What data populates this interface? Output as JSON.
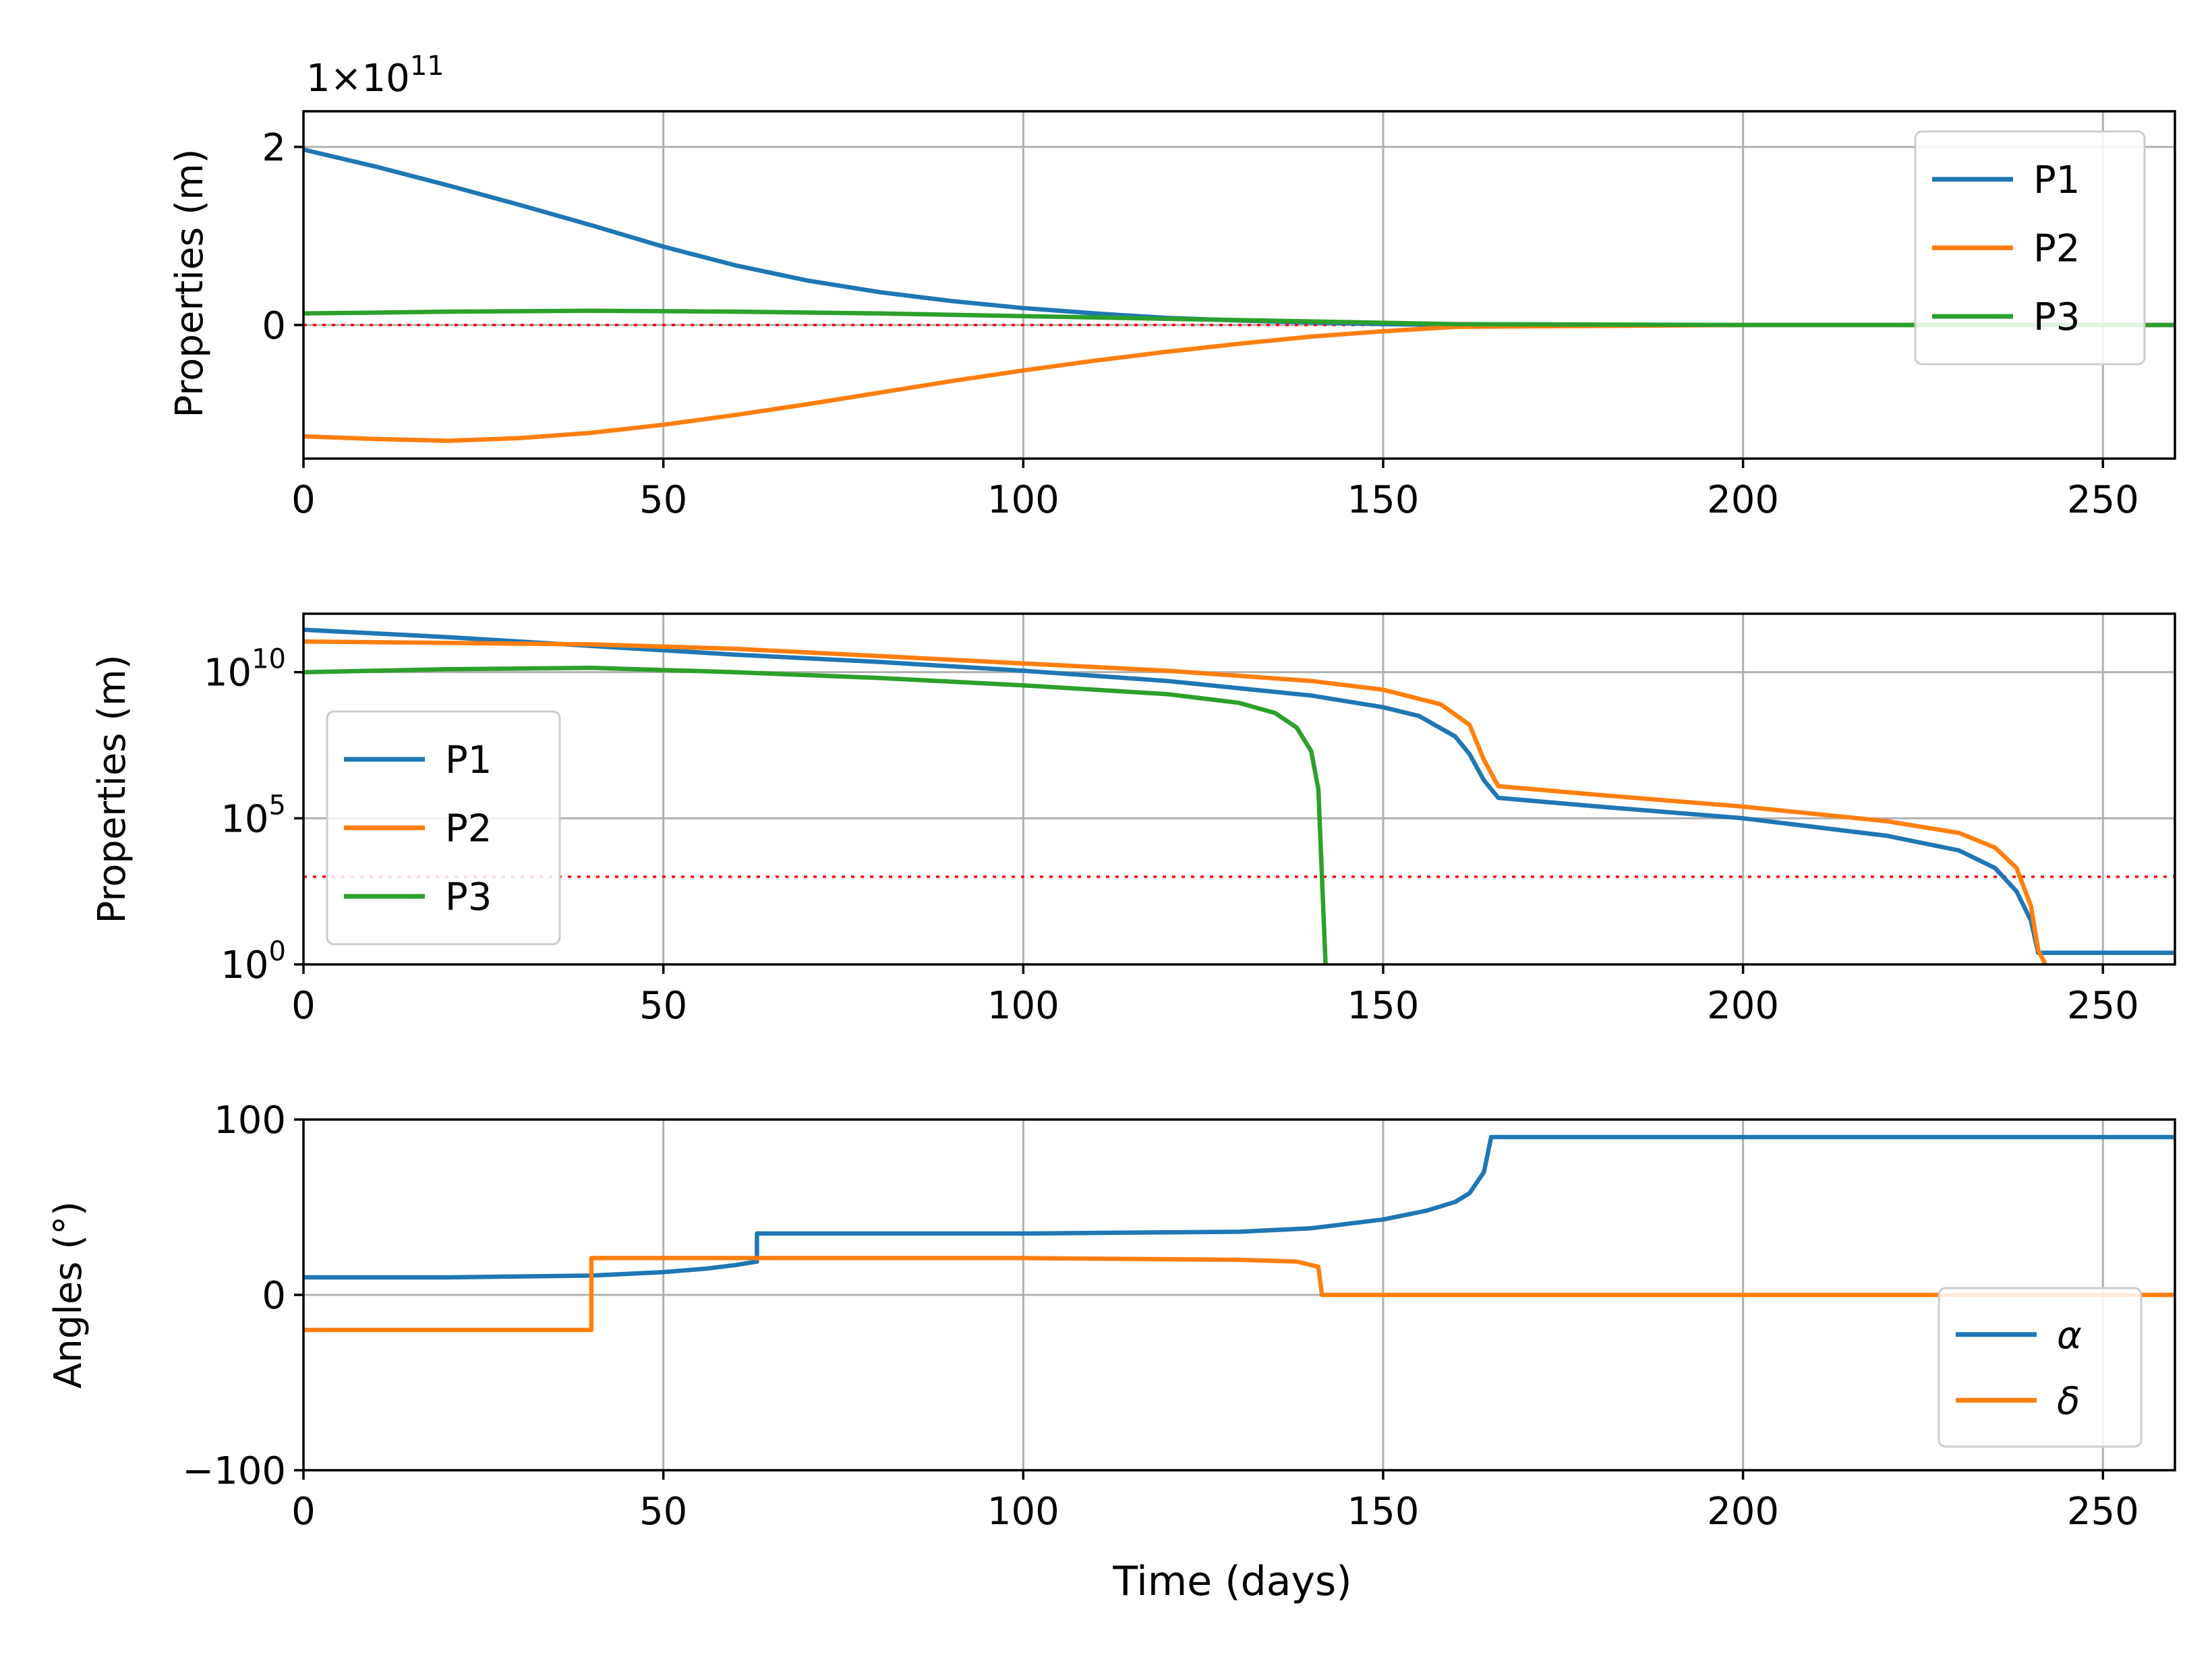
{
  "colors": {
    "blue": "#1f77b4",
    "orange": "#ff7f0e",
    "green": "#2ca02c",
    "ref": "#ff0000"
  },
  "chart_data": [
    {
      "type": "line",
      "title": "",
      "xlabel": "",
      "ylabel": "Properties (m)",
      "offset_label": "1×10^11",
      "offset_base": "1×10",
      "offset_exp": "11",
      "xlim": [
        0,
        260
      ],
      "ylim": [
        -1.5,
        2.4
      ],
      "xticks": [
        0,
        50,
        100,
        150,
        200,
        250
      ],
      "xtick_labels": [
        "0",
        "50",
        "100",
        "150",
        "200",
        "250"
      ],
      "yticks": [
        0,
        2
      ],
      "ytick_labels": [
        "0",
        "2"
      ],
      "grid": true,
      "legend": "top-right",
      "reference_line": 0,
      "series": [
        {
          "name": "P1",
          "color": "#1f77b4",
          "x": [
            0,
            10,
            20,
            30,
            40,
            50,
            60,
            70,
            80,
            90,
            100,
            110,
            120,
            130,
            140,
            150,
            160,
            200,
            260
          ],
          "y": [
            1.97,
            1.78,
            1.57,
            1.35,
            1.12,
            0.88,
            0.67,
            0.5,
            0.37,
            0.27,
            0.19,
            0.13,
            0.08,
            0.05,
            0.03,
            0.01,
            0.0,
            0.0,
            0.0
          ]
        },
        {
          "name": "P2",
          "color": "#ff7f0e",
          "x": [
            0,
            10,
            20,
            30,
            40,
            50,
            60,
            70,
            80,
            90,
            100,
            110,
            120,
            130,
            140,
            150,
            160,
            200,
            260
          ],
          "y": [
            -1.25,
            -1.28,
            -1.3,
            -1.27,
            -1.21,
            -1.12,
            -1.01,
            -0.89,
            -0.76,
            -0.63,
            -0.51,
            -0.4,
            -0.3,
            -0.21,
            -0.13,
            -0.07,
            -0.02,
            0.0,
            0.0
          ]
        },
        {
          "name": "P3",
          "color": "#2ca02c",
          "x": [
            0,
            20,
            40,
            60,
            80,
            100,
            120,
            140,
            160,
            200,
            260
          ],
          "y": [
            0.13,
            0.15,
            0.16,
            0.15,
            0.13,
            0.1,
            0.07,
            0.04,
            0.01,
            0.0,
            0.0
          ]
        }
      ]
    },
    {
      "type": "line",
      "title": "",
      "xlabel": "",
      "ylabel": "Properties (m)",
      "yscale": "log",
      "xlim": [
        0,
        260
      ],
      "ylim_log10": [
        0,
        12
      ],
      "xticks": [
        0,
        50,
        100,
        150,
        200,
        250
      ],
      "xtick_labels": [
        "0",
        "50",
        "100",
        "150",
        "200",
        "250"
      ],
      "yticks_log10": [
        0,
        5,
        10
      ],
      "ytick_bases": [
        "10",
        "10",
        "10"
      ],
      "ytick_exps": [
        "0",
        "5",
        "10"
      ],
      "grid": true,
      "legend": "center-left",
      "reference_line_log10": 3,
      "series": [
        {
          "name": "P1",
          "color": "#1f77b4",
          "x": [
            0,
            20,
            40,
            60,
            80,
            100,
            120,
            140,
            150,
            155,
            160,
            162,
            164,
            166,
            180,
            200,
            220,
            230,
            235,
            238,
            240,
            241,
            242,
            260
          ],
          "log10_y": [
            11.45,
            11.2,
            10.9,
            10.6,
            10.35,
            10.05,
            9.7,
            9.2,
            8.8,
            8.5,
            7.8,
            7.2,
            6.3,
            5.7,
            5.4,
            5.0,
            4.4,
            3.9,
            3.3,
            2.5,
            1.5,
            0.4,
            0.4,
            0.4
          ]
        },
        {
          "name": "P2",
          "color": "#ff7f0e",
          "x": [
            0,
            20,
            40,
            60,
            80,
            100,
            120,
            140,
            150,
            158,
            162,
            164,
            166,
            180,
            200,
            220,
            230,
            235,
            238,
            240,
            241,
            242
          ],
          "log10_y": [
            11.05,
            11.0,
            10.95,
            10.8,
            10.55,
            10.3,
            10.05,
            9.7,
            9.4,
            8.9,
            8.2,
            7.0,
            6.1,
            5.8,
            5.4,
            4.9,
            4.5,
            4.0,
            3.3,
            2.0,
            0.5,
            0.0
          ]
        },
        {
          "name": "P3",
          "color": "#2ca02c",
          "x": [
            0,
            20,
            40,
            60,
            80,
            100,
            120,
            130,
            135,
            138,
            140,
            141,
            141.5,
            142
          ],
          "log10_y": [
            10.0,
            10.1,
            10.15,
            10.0,
            9.8,
            9.55,
            9.25,
            8.95,
            8.6,
            8.1,
            7.3,
            6.0,
            3.0,
            0.0
          ]
        }
      ]
    },
    {
      "type": "line",
      "title": "",
      "xlabel": "Time (days)",
      "ylabel": "Angles (°)",
      "xlim": [
        0,
        260
      ],
      "ylim": [
        -100,
        100
      ],
      "xticks": [
        0,
        50,
        100,
        150,
        200,
        250
      ],
      "xtick_labels": [
        "0",
        "50",
        "100",
        "150",
        "200",
        "250"
      ],
      "yticks": [
        -100,
        0,
        100
      ],
      "ytick_labels": [
        "−100",
        "0",
        "100"
      ],
      "grid": true,
      "legend": "bottom-right",
      "series": [
        {
          "name": "α",
          "color": "#1f77b4",
          "x": [
            0,
            20,
            40,
            50,
            56,
            60,
            63,
            63,
            70,
            100,
            130,
            140,
            150,
            156,
            160,
            162,
            164,
            165,
            260
          ],
          "y": [
            10,
            10,
            11,
            13,
            15,
            17,
            19,
            35,
            35,
            35,
            36,
            38,
            43,
            48,
            53,
            58,
            70,
            90,
            90
          ]
        },
        {
          "name": "δ",
          "color": "#ff7f0e",
          "x": [
            0,
            40,
            40,
            60,
            100,
            130,
            138,
            141,
            141.5,
            142,
            260
          ],
          "y": [
            -20,
            -20,
            21,
            21,
            21,
            20,
            19,
            16,
            0,
            0,
            0
          ]
        }
      ]
    }
  ]
}
